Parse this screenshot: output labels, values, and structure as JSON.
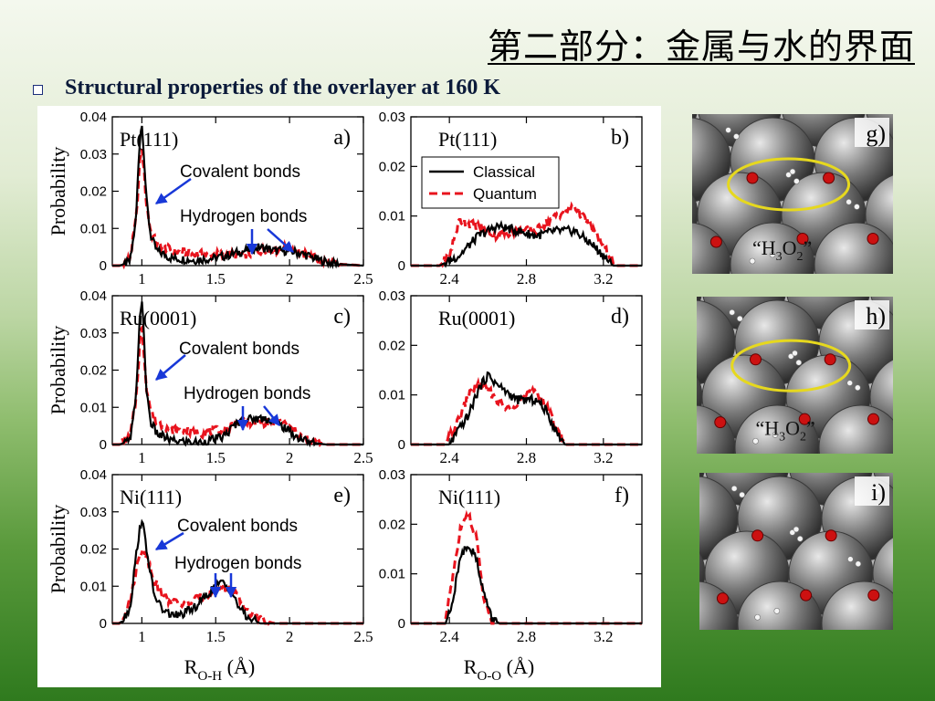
{
  "header": {
    "title": "第二部分：金属与水的界面",
    "subtitle": "Structural properties of the overlayer at 160 K"
  },
  "icons": {
    "bullet": "square-bullet-icon"
  },
  "colors": {
    "classical": "#000000",
    "quantum": "#e8141e",
    "arrow": "#1838d8",
    "ellipse": "#e6d81e",
    "oxygen": "#cc1111",
    "metal": "#7a7a7a"
  },
  "chart_data": [
    {
      "type": "line",
      "panel": "a)",
      "surface": "Pt(111)",
      "ylabel": "Probability",
      "xlim": [
        0.8,
        2.5
      ],
      "ylim": [
        0,
        0.04
      ],
      "xticks": [
        "1",
        "1.5",
        "2",
        "2.5"
      ],
      "yticks": [
        "0",
        "0.01",
        "0.02",
        "0.03",
        "0.04"
      ],
      "annotations": [
        "Covalent bonds",
        "Hydrogen bonds"
      ],
      "series": [
        {
          "x": [
            0.85,
            0.92,
            0.96,
            0.98,
            0.99,
            1.0,
            1.01,
            1.03,
            1.06,
            1.1,
            1.2,
            1.35,
            1.5,
            1.6,
            1.7,
            1.8,
            1.9,
            2.0,
            2.1,
            2.2,
            2.3,
            2.5
          ],
          "y": [
            0,
            0.001,
            0.012,
            0.03,
            0.036,
            0.038,
            0.033,
            0.018,
            0.008,
            0.004,
            0.002,
            0.0015,
            0.002,
            0.003,
            0.004,
            0.005,
            0.004,
            0.004,
            0.003,
            0.0015,
            0.0005,
            0
          ]
        },
        {
          "x": [
            0.85,
            0.92,
            0.96,
            0.98,
            0.99,
            1.0,
            1.01,
            1.03,
            1.06,
            1.1,
            1.2,
            1.35,
            1.5,
            1.6,
            1.7,
            1.8,
            1.9,
            2.0,
            2.1,
            2.2,
            2.3,
            2.5
          ],
          "y": [
            0,
            0.002,
            0.012,
            0.024,
            0.03,
            0.031,
            0.028,
            0.017,
            0.009,
            0.006,
            0.004,
            0.003,
            0.003,
            0.003,
            0.003,
            0.004,
            0.004,
            0.005,
            0.003,
            0.0015,
            0.0005,
            0
          ]
        }
      ]
    },
    {
      "type": "line",
      "panel": "b)",
      "surface": "Pt(111)",
      "xlim": [
        2.2,
        3.4
      ],
      "ylim": [
        0,
        0.03
      ],
      "xticks": [
        "2.4",
        "2.8",
        "3.2"
      ],
      "yticks": [
        "0",
        "0.01",
        "0.02",
        "0.03"
      ],
      "legend": {
        "position": "top-left",
        "entries": [
          "Classical",
          "Quantum"
        ]
      },
      "series": [
        {
          "name": "Classical",
          "x": [
            2.35,
            2.45,
            2.55,
            2.65,
            2.75,
            2.85,
            2.95,
            3.05,
            3.15,
            3.25
          ],
          "y": [
            0,
            0.002,
            0.006,
            0.008,
            0.007,
            0.006,
            0.007,
            0.007,
            0.004,
            0
          ]
        },
        {
          "name": "Quantum",
          "x": [
            2.35,
            2.4,
            2.45,
            2.55,
            2.65,
            2.75,
            2.85,
            2.95,
            3.05,
            3.15,
            3.25
          ],
          "y": [
            0,
            0.002,
            0.009,
            0.008,
            0.006,
            0.007,
            0.007,
            0.01,
            0.012,
            0.007,
            0.001
          ]
        }
      ]
    },
    {
      "type": "line",
      "panel": "c)",
      "surface": "Ru(0001)",
      "ylabel": "Probability",
      "xlim": [
        0.8,
        2.5
      ],
      "ylim": [
        0,
        0.04
      ],
      "xticks": [
        "1",
        "1.5",
        "2",
        "2.5"
      ],
      "yticks": [
        "0",
        "0.01",
        "0.02",
        "0.03",
        "0.04"
      ],
      "annotations": [
        "Covalent bonds",
        "Hydrogen bonds"
      ],
      "series": [
        {
          "x": [
            0.85,
            0.92,
            0.96,
            0.98,
            0.99,
            1.0,
            1.01,
            1.03,
            1.06,
            1.1,
            1.2,
            1.4,
            1.55,
            1.65,
            1.75,
            1.85,
            1.95,
            2.05,
            2.15,
            2.25,
            2.5
          ],
          "y": [
            0,
            0.001,
            0.012,
            0.03,
            0.037,
            0.038,
            0.032,
            0.015,
            0.006,
            0.003,
            0.001,
            0.0005,
            0.002,
            0.006,
            0.007,
            0.007,
            0.005,
            0.002,
            0.0005,
            0,
            0
          ]
        },
        {
          "x": [
            0.85,
            0.92,
            0.96,
            0.98,
            0.99,
            1.0,
            1.01,
            1.03,
            1.06,
            1.1,
            1.2,
            1.4,
            1.55,
            1.65,
            1.75,
            1.85,
            1.95,
            2.05,
            2.15,
            2.25,
            2.5
          ],
          "y": [
            0,
            0.002,
            0.012,
            0.024,
            0.03,
            0.031,
            0.027,
            0.016,
            0.009,
            0.006,
            0.004,
            0.003,
            0.004,
            0.006,
            0.006,
            0.006,
            0.006,
            0.003,
            0.001,
            0,
            0
          ]
        }
      ]
    },
    {
      "type": "line",
      "panel": "d)",
      "surface": "Ru(0001)",
      "xlim": [
        2.2,
        3.4
      ],
      "ylim": [
        0,
        0.03
      ],
      "xticks": [
        "2.4",
        "2.8",
        "3.2"
      ],
      "yticks": [
        "0",
        "0.01",
        "0.02",
        "0.03"
      ],
      "series": [
        {
          "name": "Classical",
          "x": [
            2.4,
            2.5,
            2.55,
            2.6,
            2.65,
            2.75,
            2.85,
            2.9,
            2.95,
            3.0
          ],
          "y": [
            0,
            0.006,
            0.011,
            0.014,
            0.012,
            0.009,
            0.009,
            0.007,
            0.003,
            0
          ]
        },
        {
          "name": "Quantum",
          "x": [
            2.38,
            2.45,
            2.5,
            2.55,
            2.6,
            2.65,
            2.7,
            2.8,
            2.85,
            2.9,
            2.95,
            3.0
          ],
          "y": [
            0,
            0.005,
            0.01,
            0.012,
            0.011,
            0.009,
            0.007,
            0.01,
            0.011,
            0.008,
            0.004,
            0
          ]
        }
      ]
    },
    {
      "type": "line",
      "panel": "e)",
      "surface": "Ni(111)",
      "ylabel": "Probability",
      "xlabel": "R_O-H (Å)",
      "xlim": [
        0.8,
        2.5
      ],
      "ylim": [
        0,
        0.04
      ],
      "xticks": [
        "1",
        "1.5",
        "2",
        "2.5"
      ],
      "yticks": [
        "0",
        "0.01",
        "0.02",
        "0.03",
        "0.04"
      ],
      "annotations": [
        "Covalent bonds",
        "Hydrogen bonds"
      ],
      "series": [
        {
          "x": [
            0.85,
            0.92,
            0.96,
            0.99,
            1.01,
            1.04,
            1.08,
            1.15,
            1.25,
            1.35,
            1.45,
            1.5,
            1.55,
            1.6,
            1.65,
            1.7,
            1.8,
            1.9,
            2.0,
            2.5
          ],
          "y": [
            0,
            0.004,
            0.018,
            0.027,
            0.026,
            0.018,
            0.008,
            0.003,
            0.002,
            0.004,
            0.008,
            0.01,
            0.011,
            0.009,
            0.005,
            0.002,
            0,
            0,
            0,
            0
          ]
        },
        {
          "x": [
            0.85,
            0.92,
            0.96,
            0.99,
            1.01,
            1.04,
            1.08,
            1.15,
            1.25,
            1.35,
            1.45,
            1.5,
            1.55,
            1.6,
            1.65,
            1.7,
            1.8,
            1.9,
            2.0,
            2.5
          ],
          "y": [
            0,
            0.006,
            0.014,
            0.019,
            0.02,
            0.017,
            0.012,
            0.007,
            0.005,
            0.006,
            0.008,
            0.009,
            0.01,
            0.009,
            0.007,
            0.004,
            0.001,
            0,
            0,
            0
          ]
        }
      ]
    },
    {
      "type": "line",
      "panel": "f)",
      "surface": "Ni(111)",
      "xlabel": "R_O-O (Å)",
      "xlim": [
        2.2,
        3.4
      ],
      "ylim": [
        0,
        0.03
      ],
      "xticks": [
        "2.4",
        "2.8",
        "3.2"
      ],
      "yticks": [
        "0",
        "0.01",
        "0.02",
        "0.03"
      ],
      "series": [
        {
          "name": "Classical",
          "x": [
            2.38,
            2.42,
            2.46,
            2.5,
            2.54,
            2.58,
            2.62,
            2.66
          ],
          "y": [
            0,
            0.005,
            0.014,
            0.016,
            0.013,
            0.006,
            0.001,
            0
          ]
        },
        {
          "name": "Quantum",
          "x": [
            2.38,
            2.42,
            2.46,
            2.5,
            2.54,
            2.58,
            2.62
          ],
          "y": [
            0.001,
            0.01,
            0.02,
            0.022,
            0.017,
            0.005,
            0
          ]
        }
      ]
    }
  ],
  "snapshots": [
    {
      "label": "g)",
      "caption_main": "“H",
      "caption_sub1": "3",
      "caption_mid": "O",
      "caption_sub2": "2",
      "caption_end": "”"
    },
    {
      "label": "h)",
      "caption_main": "“H",
      "caption_sub1": "3",
      "caption_mid": "O",
      "caption_sub2": "2",
      "caption_end": "”"
    },
    {
      "label": "i)"
    }
  ]
}
